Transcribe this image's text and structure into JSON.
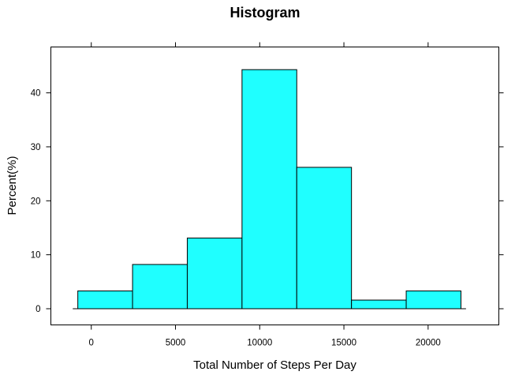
{
  "chart_data": {
    "type": "bar",
    "title": "Histogram",
    "xlabel": "Total Number of Steps Per Day",
    "ylabel": "Percent(%)",
    "xlim": [
      -2400,
      24200
    ],
    "ylim": [
      -3,
      48.5
    ],
    "x_ticks": [
      0,
      5000,
      10000,
      15000,
      20000
    ],
    "x_tick_labels": [
      "0",
      "5000",
      "10000",
      "15000",
      "20000"
    ],
    "y_ticks": [
      0,
      10,
      20,
      30,
      40
    ],
    "y_tick_labels": [
      "0",
      "10",
      "20",
      "30",
      "40"
    ],
    "bin_edges": [
      -800,
      2450,
      5700,
      8950,
      12200,
      15450,
      18700,
      21950
    ],
    "values": [
      3.3,
      8.2,
      13.1,
      44.3,
      26.2,
      1.6,
      3.3
    ],
    "bar_color": "#1fffff",
    "baseline_range": [
      -1100,
      22250
    ],
    "grid": false,
    "ticks_on_all_sides": true
  }
}
